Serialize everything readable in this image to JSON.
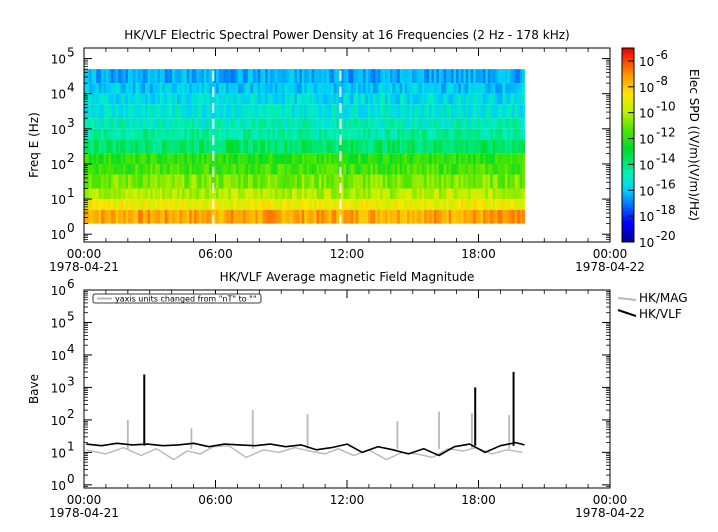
{
  "chart_data": [
    {
      "type": "heatmap",
      "title": "HK/VLF  Electric Spectral Power Density at 16 Frequencies (2 Hz - 178 kHz)",
      "ylabel": "Freq E (Hz)",
      "yscale": "log",
      "ylim": [
        0.6,
        200000
      ],
      "y_ticks": [
        {
          "base": "10",
          "exp": "0",
          "value": 1
        },
        {
          "base": "10",
          "exp": "1",
          "value": 10
        },
        {
          "base": "10",
          "exp": "2",
          "value": 100
        },
        {
          "base": "10",
          "exp": "3",
          "value": 1000
        },
        {
          "base": "10",
          "exp": "4",
          "value": 10000
        },
        {
          "base": "10",
          "exp": "5",
          "value": 100000
        }
      ],
      "x_ticks": [
        {
          "label": "00:00",
          "date": "1978-04-21",
          "hour": 0
        },
        {
          "label": "06:00",
          "date": "",
          "hour": 6
        },
        {
          "label": "12:00",
          "date": "",
          "hour": 12
        },
        {
          "label": "18:00",
          "date": "",
          "hour": 18
        },
        {
          "label": "00:00",
          "date": "1978-04-22",
          "hour": 24
        }
      ],
      "data_extent_hours": [
        0,
        20.1
      ],
      "freq_range_hz": [
        2,
        178000
      ],
      "colorbar": {
        "label": "Elec SPD ((V/m)(V/m)/Hz)",
        "scale": "log",
        "range": [
          1e-20,
          1e-05
        ],
        "ticks": [
          {
            "base": "10",
            "exp": "-6",
            "value": -6
          },
          {
            "base": "10",
            "exp": "-8",
            "value": -8
          },
          {
            "base": "10",
            "exp": "-10",
            "value": -10
          },
          {
            "base": "10",
            "exp": "-12",
            "value": -12
          },
          {
            "base": "10",
            "exp": "-14",
            "value": -14
          },
          {
            "base": "10",
            "exp": "-16",
            "value": -16
          },
          {
            "base": "10",
            "exp": "-18",
            "value": -18
          },
          {
            "base": "10",
            "exp": "-20",
            "value": -20
          }
        ]
      },
      "spectrum_log_spd_by_band": [
        {
          "f_low": 2,
          "f_high": 5,
          "log_spd": -7.4
        },
        {
          "f_low": 5,
          "f_high": 10,
          "log_spd": -9.0
        },
        {
          "f_low": 10,
          "f_high": 20,
          "log_spd": -10.0
        },
        {
          "f_low": 20,
          "f_high": 50,
          "log_spd": -10.8
        },
        {
          "f_low": 50,
          "f_high": 100,
          "log_spd": -11.6
        },
        {
          "f_low": 100,
          "f_high": 200,
          "log_spd": -12.0
        },
        {
          "f_low": 200,
          "f_high": 500,
          "log_spd": -13.6
        },
        {
          "f_low": 500,
          "f_high": 1000,
          "log_spd": -14.4
        },
        {
          "f_low": 1000,
          "f_high": 2000,
          "log_spd": -14.8
        },
        {
          "f_low": 2000,
          "f_high": 5000,
          "log_spd": -15.2
        },
        {
          "f_low": 5000,
          "f_high": 10000,
          "log_spd": -15.6
        },
        {
          "f_low": 10000,
          "f_high": 20000,
          "log_spd": -16.0
        },
        {
          "f_low": 20000,
          "f_high": 50000,
          "log_spd": -16.4
        }
      ],
      "data_gaps_hours": [
        5.9,
        11.7
      ]
    },
    {
      "type": "line",
      "title": "HK/VLF  Average magnetic Field Magnitude",
      "ylabel": "Bave",
      "yscale": "log",
      "ylim": [
        0.8,
        1000000
      ],
      "annotation": "yaxis units changed from \"nT\" to \"\"",
      "y_ticks": [
        {
          "base": "10",
          "exp": "0",
          "value": 1
        },
        {
          "base": "10",
          "exp": "1",
          "value": 10
        },
        {
          "base": "10",
          "exp": "2",
          "value": 100
        },
        {
          "base": "10",
          "exp": "3",
          "value": 1000
        },
        {
          "base": "10",
          "exp": "4",
          "value": 10000
        },
        {
          "base": "10",
          "exp": "5",
          "value": 100000
        },
        {
          "base": "10",
          "exp": "6",
          "value": 1000000
        }
      ],
      "x_ticks": [
        {
          "label": "00:00",
          "date": "1978-04-21",
          "hour": 0
        },
        {
          "label": "06:00",
          "date": "",
          "hour": 6
        },
        {
          "label": "12:00",
          "date": "",
          "hour": 12
        },
        {
          "label": "18:00",
          "date": "",
          "hour": 18
        },
        {
          "label": "00:00",
          "date": "1978-04-22",
          "hour": 24
        }
      ],
      "series": [
        {
          "name": "HK/MAG",
          "color": "#b8b8b8",
          "x_hours": [
            0.1,
            1.0,
            1.8,
            2.6,
            3.3,
            4.1,
            4.7,
            5.3,
            5.9,
            6.6,
            7.4,
            8.2,
            8.9,
            9.6,
            10.3,
            11.0,
            11.6,
            12.3,
            13.0,
            13.8,
            14.5,
            15.2,
            15.9,
            16.6,
            17.3,
            17.9,
            18.6,
            19.3,
            20.0
          ],
          "y": [
            12,
            9,
            14,
            8,
            13,
            6,
            11,
            9,
            15,
            16,
            7,
            12,
            10,
            14,
            11,
            9,
            13,
            8,
            12,
            6,
            10,
            9,
            7,
            13,
            11,
            14,
            9,
            12,
            10
          ],
          "spikes": [
            {
              "x_hour": 2.0,
              "y": 100
            },
            {
              "x_hour": 4.9,
              "y": 55
            },
            {
              "x_hour": 7.7,
              "y": 200
            },
            {
              "x_hour": 10.2,
              "y": 150
            },
            {
              "x_hour": 14.3,
              "y": 90
            },
            {
              "x_hour": 16.2,
              "y": 180
            },
            {
              "x_hour": 17.7,
              "y": 160
            },
            {
              "x_hour": 19.4,
              "y": 140
            }
          ]
        },
        {
          "name": "HK/VLF",
          "color": "#000000",
          "x_hours": [
            0.1,
            0.8,
            1.5,
            2.2,
            2.9,
            3.6,
            4.3,
            5.0,
            5.7,
            6.4,
            7.1,
            7.8,
            8.5,
            9.2,
            9.9,
            10.6,
            11.3,
            12.0,
            12.7,
            13.4,
            14.1,
            14.8,
            15.5,
            16.2,
            16.9,
            17.6,
            18.3,
            19.0,
            19.7,
            20.1
          ],
          "y": [
            18,
            16,
            19,
            17,
            18,
            16,
            17,
            19,
            15,
            18,
            17,
            16,
            18,
            15,
            17,
            12,
            14,
            18,
            10,
            15,
            12,
            9,
            13,
            8,
            15,
            18,
            10,
            16,
            20,
            17
          ],
          "spikes": [
            {
              "x_hour": 2.75,
              "y": 2500
            },
            {
              "x_hour": 17.85,
              "y": 1000
            },
            {
              "x_hour": 19.6,
              "y": 3000
            }
          ]
        }
      ]
    }
  ]
}
